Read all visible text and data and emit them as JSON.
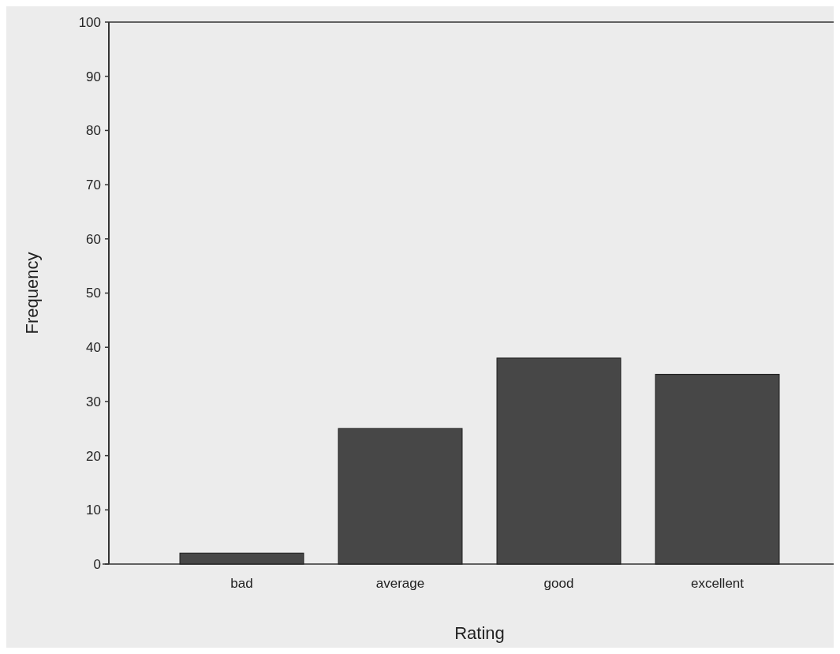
{
  "chart_data": {
    "type": "bar",
    "xlabel": "Rating",
    "ylabel": "Frequency",
    "categories": [
      "bad",
      "average",
      "good",
      "excellent"
    ],
    "values": [
      2,
      25,
      38,
      35
    ],
    "color": "#474747",
    "ylim": [
      0,
      100
    ],
    "yticks": [
      0,
      10,
      20,
      30,
      40,
      50,
      60,
      70,
      80,
      90,
      100
    ],
    "grid": false
  }
}
